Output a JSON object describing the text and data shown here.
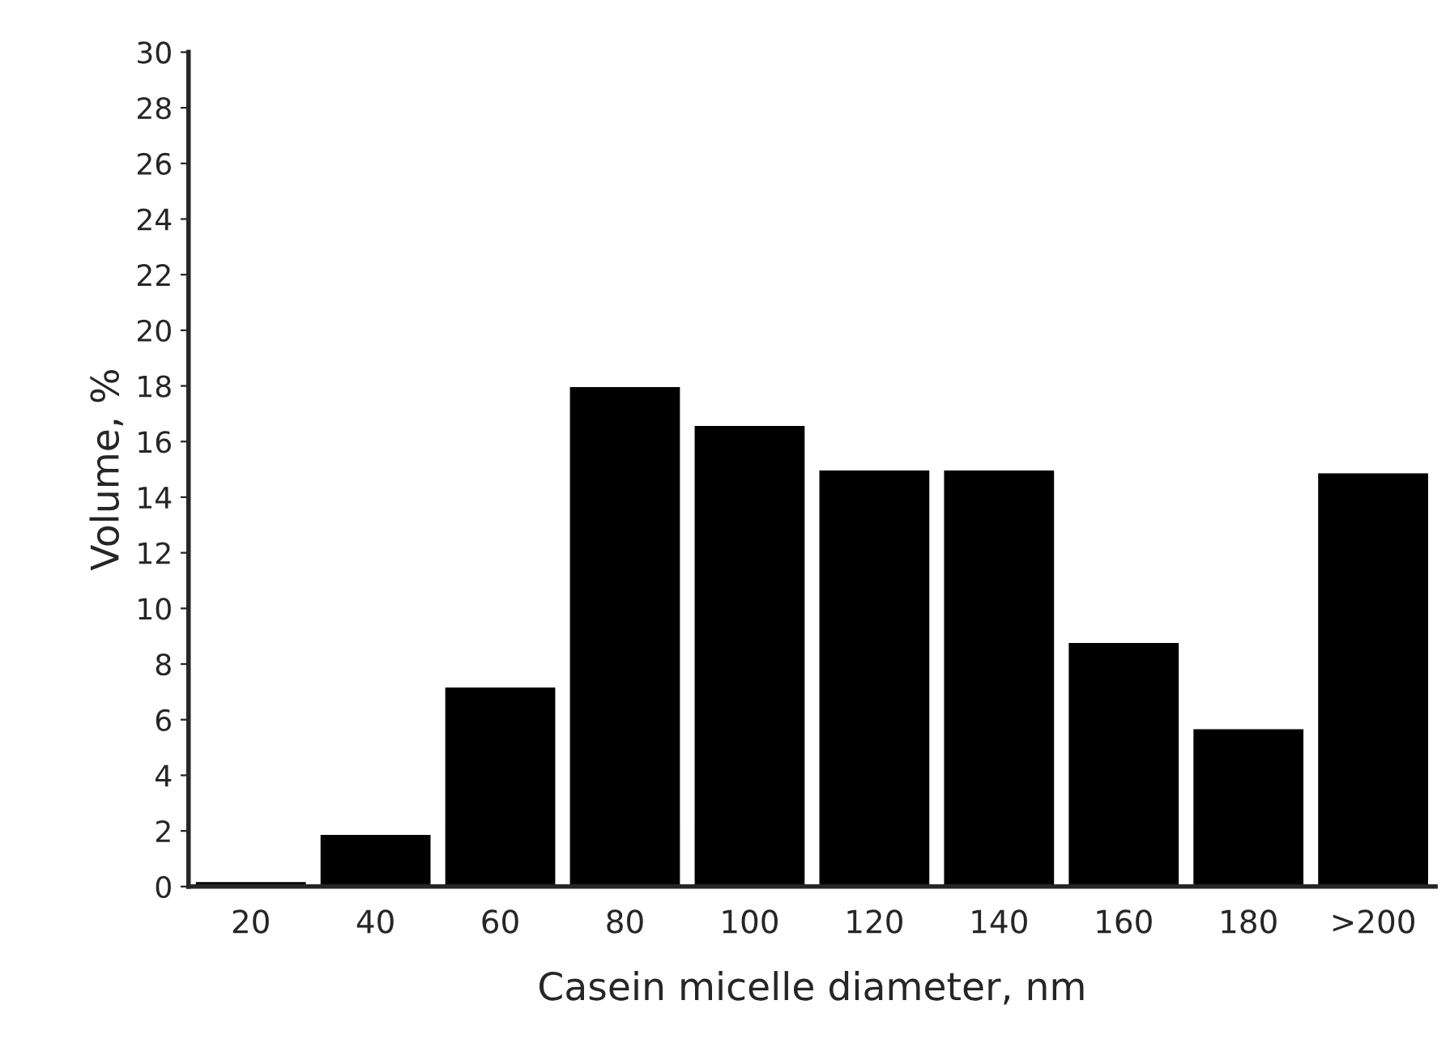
{
  "chart_data": {
    "type": "bar",
    "xlabel": "Casein micelle diameter, nm",
    "ylabel": "Volume, %",
    "categories": [
      "20",
      "40",
      "60",
      "80",
      "100",
      "120",
      "140",
      "160",
      "180",
      ">200"
    ],
    "values": [
      0.2,
      1.9,
      7.2,
      18.0,
      16.6,
      15.0,
      15.0,
      8.8,
      5.7,
      14.9
    ],
    "color": "#000000",
    "ylim": [
      0,
      30
    ],
    "yticks": [
      0,
      2,
      4,
      6,
      8,
      10,
      12,
      14,
      16,
      18,
      20,
      22,
      24,
      26,
      28,
      30
    ]
  }
}
